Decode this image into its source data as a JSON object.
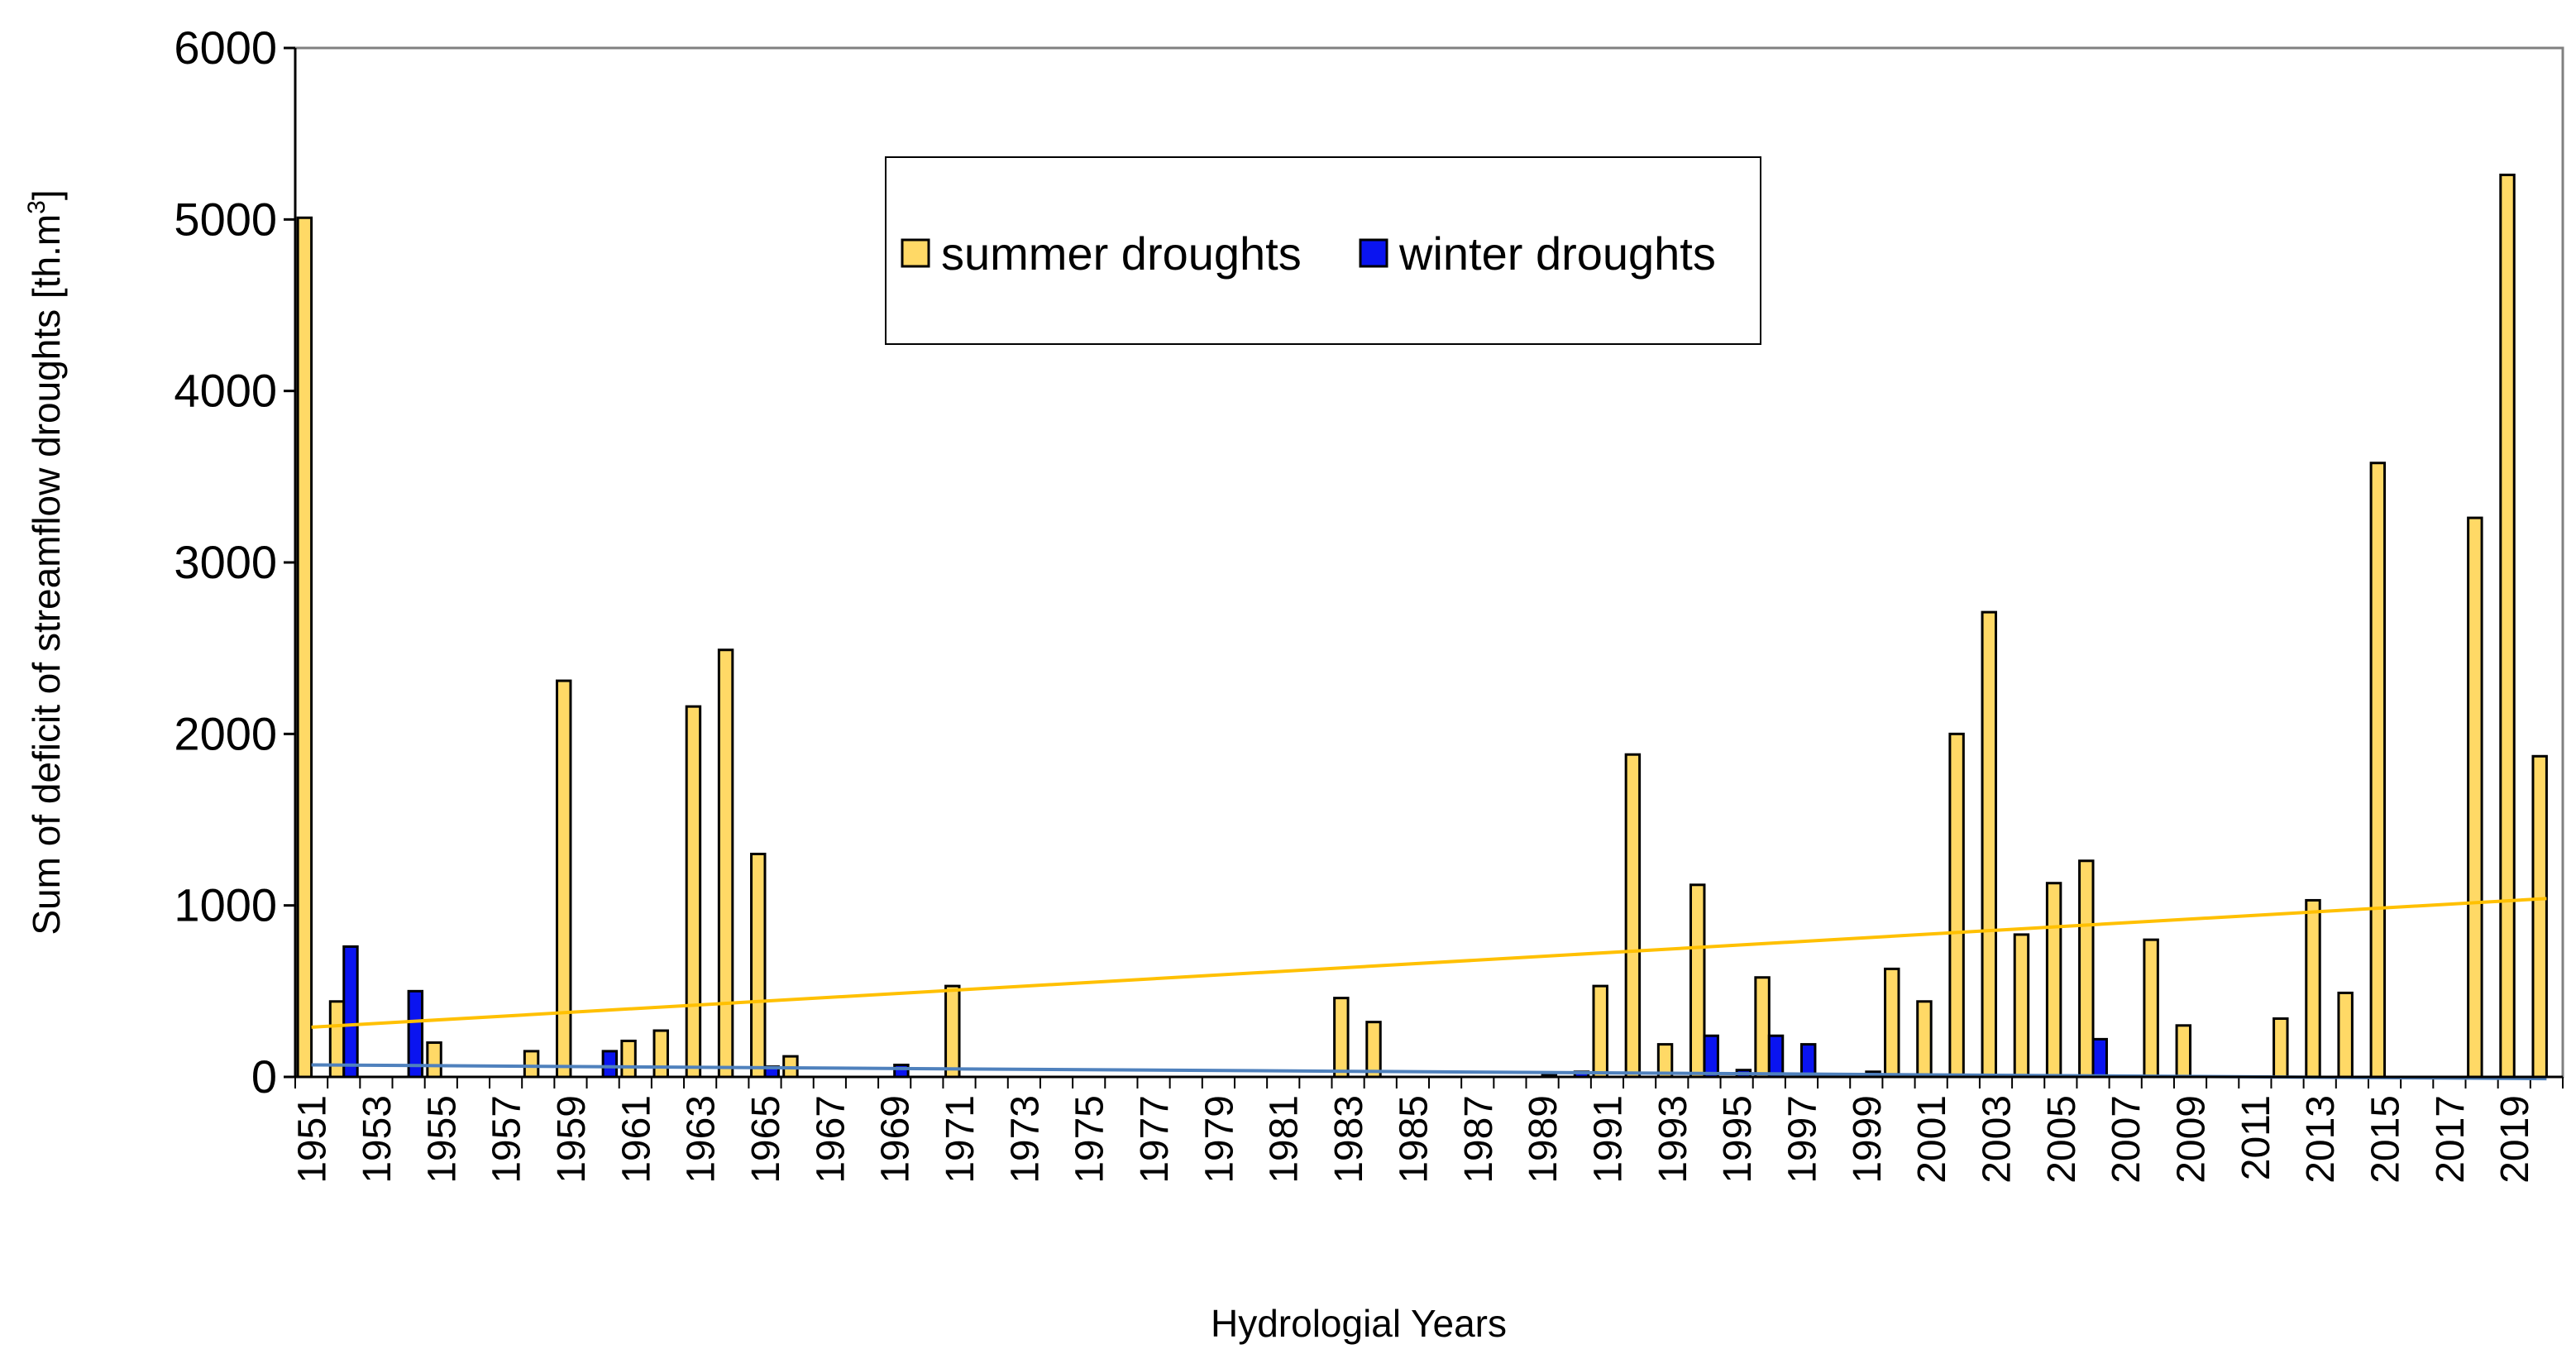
{
  "chart_data": {
    "type": "bar",
    "title": "",
    "xlabel": "Hydrologial Years",
    "ylabel": "Sum of deficit of streamflow droughts [th.m",
    "ylabel_superscript": "3",
    "ylabel_suffix": "]",
    "ylim": [
      0,
      6000
    ],
    "yticks": [
      0,
      1000,
      2000,
      3000,
      4000,
      5000,
      6000
    ],
    "grid": false,
    "legend_position": "top-center",
    "categories": [
      1951,
      1952,
      1953,
      1954,
      1955,
      1956,
      1957,
      1958,
      1959,
      1960,
      1961,
      1962,
      1963,
      1964,
      1965,
      1966,
      1967,
      1968,
      1969,
      1970,
      1971,
      1972,
      1973,
      1974,
      1975,
      1976,
      1977,
      1978,
      1979,
      1980,
      1981,
      1982,
      1983,
      1984,
      1985,
      1986,
      1987,
      1988,
      1989,
      1990,
      1991,
      1992,
      1993,
      1994,
      1995,
      1996,
      1997,
      1998,
      1999,
      2000,
      2001,
      2002,
      2003,
      2004,
      2005,
      2006,
      2007,
      2008,
      2009,
      2010,
      2011,
      2012,
      2013,
      2014,
      2015,
      2016,
      2017,
      2018,
      2019,
      2020
    ],
    "xtick_labels": [
      "1951",
      "1953",
      "1955",
      "1957",
      "1959",
      "1961",
      "1963",
      "1965",
      "1967",
      "1969",
      "1971",
      "1973",
      "1975",
      "1977",
      "1979",
      "1981",
      "1983",
      "1985",
      "1987",
      "1989",
      "1991",
      "1993",
      "1995",
      "1997",
      "1999",
      "2001",
      "2003",
      "2005",
      "2007",
      "2009",
      "2011",
      "2013",
      "2015",
      "2017",
      "2019"
    ],
    "series": [
      {
        "name": "summer droughts",
        "color": "#FFD966",
        "values": [
          5010,
          440,
          0,
          0,
          200,
          0,
          0,
          150,
          2310,
          0,
          210,
          270,
          2160,
          2490,
          1300,
          120,
          0,
          0,
          0,
          0,
          530,
          0,
          0,
          0,
          0,
          0,
          0,
          0,
          0,
          0,
          0,
          0,
          460,
          320,
          0,
          0,
          0,
          0,
          0,
          0,
          530,
          1880,
          190,
          1120,
          0,
          580,
          0,
          0,
          0,
          630,
          440,
          2000,
          2710,
          830,
          1130,
          1260,
          0,
          800,
          300,
          0,
          0,
          340,
          1030,
          490,
          3580,
          0,
          0,
          3260,
          5260,
          1870
        ]
      },
      {
        "name": "winter droughts",
        "color": "#0A14F0",
        "values": [
          0,
          760,
          0,
          500,
          0,
          0,
          0,
          0,
          0,
          150,
          0,
          0,
          0,
          0,
          60,
          0,
          0,
          0,
          70,
          0,
          0,
          0,
          0,
          0,
          0,
          0,
          0,
          0,
          0,
          0,
          0,
          0,
          0,
          0,
          0,
          0,
          0,
          0,
          10,
          30,
          0,
          0,
          0,
          240,
          40,
          240,
          190,
          0,
          30,
          0,
          0,
          0,
          0,
          0,
          0,
          220,
          0,
          0,
          0,
          0,
          0,
          0,
          0,
          0,
          0,
          0,
          0,
          0,
          0,
          0
        ]
      }
    ],
    "trendlines": [
      {
        "name": "summer trend",
        "color": "#FFC000",
        "start": [
          1951,
          290
        ],
        "end": [
          2020,
          1040
        ]
      },
      {
        "name": "winter trend",
        "color": "#4F81BD",
        "start": [
          1951,
          70
        ],
        "end": [
          2020,
          -10
        ]
      }
    ]
  }
}
